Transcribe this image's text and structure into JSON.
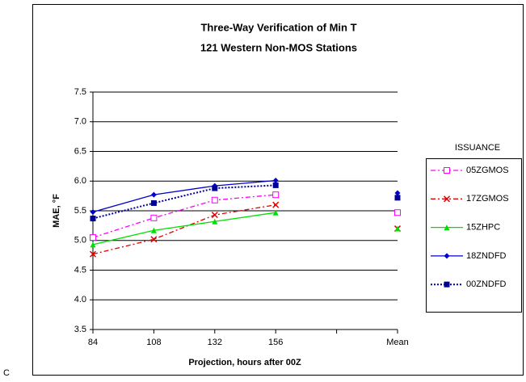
{
  "chart_data": {
    "type": "line",
    "title": "Three-Way Verification of Min T",
    "subtitle": "121 Western Non-MOS Stations",
    "xlabel": "Projection, hours after 00Z",
    "ylabel": "MAE, °F",
    "legend_title": "ISSUANCE",
    "legend": "right",
    "grid": true,
    "categories": [
      "84",
      "108",
      "132",
      "156",
      null,
      "Mean"
    ],
    "ylim": [
      3.5,
      7.5
    ],
    "yticks": [
      3.5,
      {
        "value": 4,
        "label": "4.0"
      },
      4.5,
      {
        "value": 5,
        "label": "5.0"
      },
      5.5,
      {
        "value": 6,
        "label": "6.0"
      },
      6.5,
      {
        "value": 7,
        "label": "7.0"
      },
      7.5
    ],
    "series": [
      {
        "name": "05ZGMOS",
        "color": "#ff00ff",
        "dash": "dashdot",
        "marker": "square-open",
        "values": [
          5.05,
          5.38,
          5.68,
          5.77,
          null,
          5.47
        ]
      },
      {
        "name": "17ZGMOS",
        "color": "#e00000",
        "dash": "dashdot",
        "marker": "x",
        "values": [
          4.77,
          5.02,
          5.43,
          5.6,
          null,
          5.2
        ]
      },
      {
        "name": "15ZHPC",
        "color": "#00e000",
        "dash": "solid",
        "marker": "triangle",
        "values": [
          4.93,
          5.17,
          5.32,
          5.47,
          null,
          5.2
        ]
      },
      {
        "name": "18ZNDFD",
        "color": "#0000cc",
        "dash": "solid",
        "marker": "diamond",
        "values": [
          5.48,
          5.77,
          5.92,
          6.01,
          null,
          5.8
        ]
      },
      {
        "name": "00ZNDFD",
        "color": "#000099",
        "dash": "dot",
        "marker": "square",
        "values": [
          5.37,
          5.63,
          5.88,
          5.93,
          null,
          5.72
        ]
      }
    ]
  },
  "fragment": "C"
}
